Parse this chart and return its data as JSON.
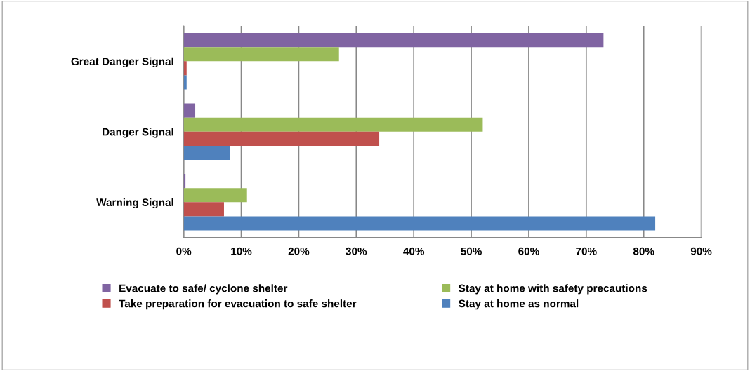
{
  "chart_data": {
    "type": "bar",
    "orientation": "horizontal",
    "categories": [
      "Great Danger Signal",
      "Danger Signal",
      "Warning Signal"
    ],
    "series": [
      {
        "name": "Evacuate to safe/ cyclone shelter",
        "color": "#8064a2",
        "values": [
          73,
          2,
          0.3
        ]
      },
      {
        "name": "Stay at home with safety precautions",
        "color": "#9bbb59",
        "values": [
          27,
          52,
          11
        ]
      },
      {
        "name": "Take preparation for evacuation to safe shelter",
        "color": "#c0504d",
        "values": [
          0.5,
          34,
          7
        ]
      },
      {
        "name": "Stay at home as normal",
        "color": "#4f81bd",
        "values": [
          0.5,
          8,
          82
        ]
      }
    ],
    "xlim": [
      0,
      90
    ],
    "xticks": [
      {
        "value": 0,
        "label": "0%"
      },
      {
        "value": 10,
        "label": "10%"
      },
      {
        "value": 20,
        "label": "20%"
      },
      {
        "value": 30,
        "label": "30%"
      },
      {
        "value": 40,
        "label": "40%"
      },
      {
        "value": 50,
        "label": "50%"
      },
      {
        "value": 60,
        "label": "60%"
      },
      {
        "value": 70,
        "label": "70%"
      },
      {
        "value": 80,
        "label": "80%"
      },
      {
        "value": 90,
        "label": "90%"
      }
    ],
    "grid": "x",
    "legend": "bottom"
  }
}
